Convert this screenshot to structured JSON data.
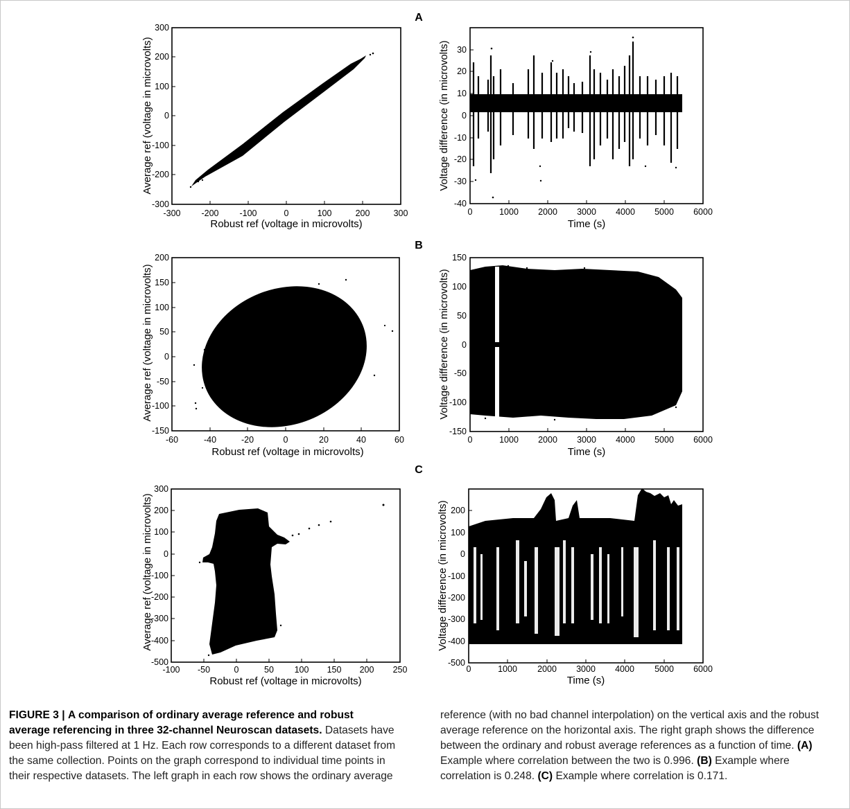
{
  "figure": {
    "panels": [
      {
        "label": "A",
        "left": {
          "xlabel": "Robust ref (voltage in microvolts)",
          "ylabel": "Average ref (voltage in microvolts)",
          "xticks": [
            "-300",
            "-200",
            "-100",
            "0",
            "100",
            "200",
            "300"
          ],
          "yticks": [
            "-300",
            "-200",
            "-100",
            "0",
            "100",
            "200",
            "300"
          ]
        },
        "right": {
          "xlabel": "Time (s)",
          "ylabel": "Voltage difference (in microvolts)",
          "xticks": [
            "0",
            "1000",
            "2000",
            "3000",
            "4000",
            "5000",
            "6000"
          ],
          "yticks": [
            "-40",
            "-30",
            "-20",
            "-10",
            "0",
            "10",
            "20",
            "30"
          ]
        }
      },
      {
        "label": "B",
        "left": {
          "xlabel": "Robust ref (voltage in microvolts)",
          "ylabel": "Average ref (voltage in microvolts)",
          "xticks": [
            "-60",
            "-40",
            "-20",
            "0",
            "20",
            "40",
            "60"
          ],
          "yticks": [
            "-150",
            "-100",
            "-50",
            "0",
            "50",
            "100",
            "150",
            "200"
          ]
        },
        "right": {
          "xlabel": "Time (s)",
          "ylabel": "Voltage difference (in microvolts)",
          "xticks": [
            "0",
            "1000",
            "2000",
            "3000",
            "4000",
            "5000",
            "6000"
          ],
          "yticks": [
            "-150",
            "-100",
            "-50",
            "0",
            "50",
            "100",
            "150"
          ]
        }
      },
      {
        "label": "C",
        "left": {
          "xlabel": "Robust ref (voltage in microvolts)",
          "ylabel": "Average ref (voltage in microvolts)",
          "xticks": [
            "-100",
            "-50",
            "0",
            "50",
            "100",
            "150",
            "200",
            "250"
          ],
          "yticks": [
            "-500",
            "-400",
            "-300",
            "-200",
            "-100",
            "0",
            "100",
            "200",
            "300"
          ]
        },
        "right": {
          "xlabel": "Time (s)",
          "ylabel": "Voltage difference (in microvolts)",
          "xticks": [
            "0",
            "1000",
            "2000",
            "3000",
            "4000",
            "5000",
            "6000"
          ],
          "yticks": [
            "-500",
            "-400",
            "-300",
            "-200",
            "-100",
            "0",
            "100",
            "200"
          ]
        }
      }
    ]
  },
  "caption": {
    "figure_label": "FIGURE 3 |",
    "title": "A comparison of ordinary average reference and robust average referencing in three 32-channel Neuroscan datasets.",
    "text_left": "Datasets have been high-pass filtered at 1 Hz. Each row corresponds to a different dataset from the same collection. Points on the graph correspond to individual time points in their respective datasets. The left graph in each row shows the ordinary average",
    "text_right_1": "reference (with no bad channel interpolation) on the vertical axis and the robust average reference on the horizontal axis. The right graph shows the difference between the ordinary and robust average references as a function of time.",
    "a_label": "(A)",
    "a_text": "Example where correlation between the two is 0.996.",
    "b_label": "(B)",
    "b_text": "Example where correlation is 0.248.",
    "c_label": "(C)",
    "c_text": "Example where correlation is 0.171."
  }
}
